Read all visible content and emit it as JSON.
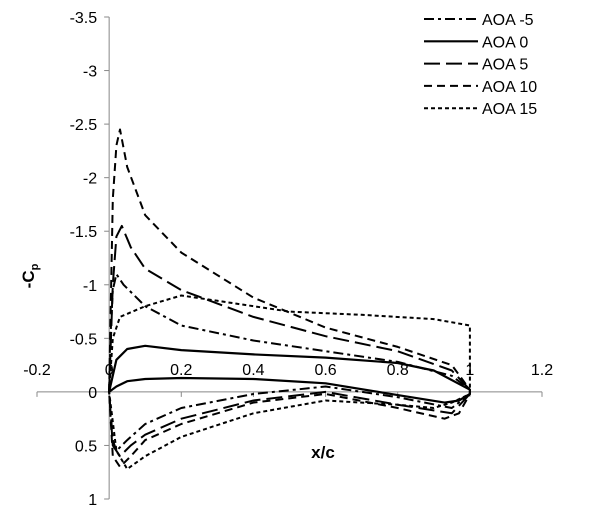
{
  "chart_data": {
    "type": "line",
    "xlabel": "x/c",
    "ylabel": "-Cp",
    "ylabel_main": "-C",
    "ylabel_sub": "p",
    "xlim": [
      -0.2,
      1.2
    ],
    "ylim": [
      1,
      -3.5
    ],
    "y_inverted": true,
    "grid": false,
    "legend_position": "top-right",
    "x_ticks": [
      -0.2,
      0,
      0.2,
      0.4,
      0.6,
      0.8,
      1,
      1.2
    ],
    "x_tick_labels": [
      "-0.2",
      "0",
      "0.2",
      "0.4",
      "0.6",
      "0.8",
      "1",
      "1.2"
    ],
    "y_ticks": [
      -3.5,
      -3,
      -2.5,
      -2,
      -1.5,
      -1,
      -0.5,
      0,
      0.5,
      1
    ],
    "y_tick_labels": [
      "-3.5",
      "-3",
      "-2.5",
      "-2",
      "-1.5",
      "-1",
      "-0.5",
      "0",
      "0.5",
      "1"
    ],
    "series": [
      {
        "name": "AOA -5",
        "dash": "dashdot",
        "upper": [
          [
            0.0,
            0.0
          ],
          [
            0.005,
            -0.6
          ],
          [
            0.01,
            -0.95
          ],
          [
            0.02,
            -1.1
          ],
          [
            0.04,
            -1.0
          ],
          [
            0.1,
            -0.8
          ],
          [
            0.2,
            -0.62
          ],
          [
            0.4,
            -0.48
          ],
          [
            0.6,
            -0.38
          ],
          [
            0.8,
            -0.28
          ],
          [
            0.95,
            -0.15
          ],
          [
            1.0,
            -0.02
          ]
        ],
        "lower": [
          [
            0.0,
            0.0
          ],
          [
            0.01,
            0.45
          ],
          [
            0.02,
            0.55
          ],
          [
            0.05,
            0.45
          ],
          [
            0.1,
            0.3
          ],
          [
            0.2,
            0.15
          ],
          [
            0.4,
            0.02
          ],
          [
            0.6,
            -0.05
          ],
          [
            0.8,
            0.05
          ],
          [
            0.95,
            0.15
          ],
          [
            1.0,
            0.02
          ]
        ]
      },
      {
        "name": "AOA 0",
        "dash": "solid",
        "upper": [
          [
            0.0,
            0.0
          ],
          [
            0.02,
            -0.3
          ],
          [
            0.05,
            -0.4
          ],
          [
            0.1,
            -0.43
          ],
          [
            0.2,
            -0.39
          ],
          [
            0.4,
            -0.35
          ],
          [
            0.6,
            -0.32
          ],
          [
            0.8,
            -0.27
          ],
          [
            0.9,
            -0.2
          ],
          [
            1.0,
            -0.02
          ]
        ],
        "lower": [
          [
            0.0,
            0.0
          ],
          [
            0.02,
            -0.05
          ],
          [
            0.05,
            -0.1
          ],
          [
            0.1,
            -0.12
          ],
          [
            0.2,
            -0.13
          ],
          [
            0.4,
            -0.12
          ],
          [
            0.6,
            -0.08
          ],
          [
            0.8,
            0.03
          ],
          [
            0.93,
            0.1
          ],
          [
            0.97,
            0.08
          ],
          [
            1.0,
            0.02
          ]
        ]
      },
      {
        "name": "AOA 5",
        "dash": "longdash",
        "upper": [
          [
            0.0,
            0.0
          ],
          [
            0.01,
            -1.0
          ],
          [
            0.02,
            -1.45
          ],
          [
            0.035,
            -1.55
          ],
          [
            0.06,
            -1.35
          ],
          [
            0.1,
            -1.15
          ],
          [
            0.2,
            -0.95
          ],
          [
            0.4,
            -0.7
          ],
          [
            0.6,
            -0.52
          ],
          [
            0.8,
            -0.38
          ],
          [
            0.95,
            -0.2
          ],
          [
            1.0,
            -0.02
          ]
        ],
        "lower": [
          [
            0.0,
            0.0
          ],
          [
            0.01,
            0.5
          ],
          [
            0.03,
            0.6
          ],
          [
            0.06,
            0.5
          ],
          [
            0.1,
            0.4
          ],
          [
            0.2,
            0.25
          ],
          [
            0.4,
            0.08
          ],
          [
            0.6,
            0.0
          ],
          [
            0.8,
            0.12
          ],
          [
            0.95,
            0.2
          ],
          [
            1.0,
            0.02
          ]
        ]
      },
      {
        "name": "AOA 10",
        "dash": "dashed",
        "upper": [
          [
            0.0,
            0.0
          ],
          [
            0.01,
            -1.8
          ],
          [
            0.02,
            -2.3
          ],
          [
            0.03,
            -2.45
          ],
          [
            0.05,
            -2.1
          ],
          [
            0.1,
            -1.65
          ],
          [
            0.2,
            -1.3
          ],
          [
            0.4,
            -0.88
          ],
          [
            0.6,
            -0.6
          ],
          [
            0.8,
            -0.42
          ],
          [
            0.95,
            -0.25
          ],
          [
            1.0,
            -0.02
          ]
        ],
        "lower": [
          [
            0.0,
            0.0
          ],
          [
            0.01,
            0.6
          ],
          [
            0.03,
            0.7
          ],
          [
            0.06,
            0.6
          ],
          [
            0.1,
            0.45
          ],
          [
            0.2,
            0.3
          ],
          [
            0.4,
            0.1
          ],
          [
            0.6,
            0.02
          ],
          [
            0.8,
            0.15
          ],
          [
            0.93,
            0.25
          ],
          [
            0.97,
            0.2
          ],
          [
            1.0,
            0.02
          ]
        ]
      },
      {
        "name": "AOA 15",
        "dash": "shortdash",
        "upper": [
          [
            0.0,
            0.0
          ],
          [
            0.01,
            -0.5
          ],
          [
            0.03,
            -0.7
          ],
          [
            0.1,
            -0.8
          ],
          [
            0.2,
            -0.9
          ],
          [
            0.3,
            -0.85
          ],
          [
            0.5,
            -0.75
          ],
          [
            0.7,
            -0.72
          ],
          [
            0.9,
            -0.68
          ],
          [
            1.0,
            -0.62
          ],
          [
            1.0,
            -0.02
          ]
        ],
        "lower": [
          [
            0.0,
            0.0
          ],
          [
            0.02,
            0.55
          ],
          [
            0.05,
            0.72
          ],
          [
            0.1,
            0.6
          ],
          [
            0.2,
            0.42
          ],
          [
            0.4,
            0.2
          ],
          [
            0.6,
            0.08
          ],
          [
            0.8,
            0.12
          ],
          [
            0.9,
            0.15
          ],
          [
            0.95,
            0.1
          ],
          [
            1.0,
            0.02
          ]
        ]
      }
    ]
  }
}
